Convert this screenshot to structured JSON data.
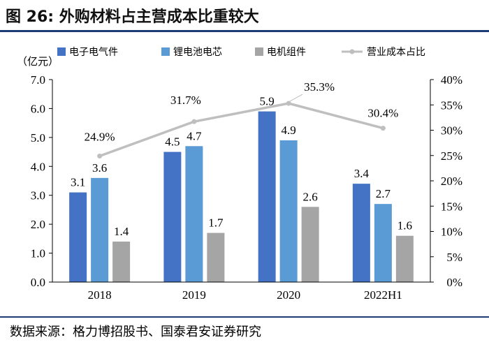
{
  "header": {
    "title": "图 26:  外购材料占主营成本比重较大"
  },
  "footer": {
    "source": "数据来源：格力博招股书、国泰君安证券研究"
  },
  "chart_data": {
    "type": "bar",
    "categories": [
      "2018",
      "2019",
      "2020",
      "2022H1"
    ],
    "unit_label": "（亿元）",
    "ylim": [
      0,
      7
    ],
    "y_ticks": [
      "0.0",
      "1.0",
      "2.0",
      "3.0",
      "4.0",
      "5.0",
      "6.0",
      "7.0"
    ],
    "y2lim": [
      0,
      40
    ],
    "y2_ticks": [
      "0%",
      "5%",
      "10%",
      "15%",
      "20%",
      "25%",
      "30%",
      "35%",
      "40%"
    ],
    "legend_position": "top",
    "series": [
      {
        "name": "电子电气件",
        "values": [
          3.1,
          4.5,
          5.9,
          3.4
        ],
        "labels": [
          "3.1",
          "4.5",
          "5.9",
          "3.4"
        ],
        "color": "#4472c4"
      },
      {
        "name": "锂电池电芯",
        "values": [
          3.6,
          4.7,
          4.9,
          2.7
        ],
        "labels": [
          "3.6",
          "4.7",
          "4.9",
          "2.7"
        ],
        "color": "#5b9bd5"
      },
      {
        "name": "电机组件",
        "values": [
          1.4,
          1.7,
          2.6,
          1.6
        ],
        "labels": [
          "1.4",
          "1.7",
          "2.6",
          "1.6"
        ],
        "color": "#a5a5a5"
      }
    ],
    "line_series": {
      "name": "营业成本占比",
      "type": "line",
      "axis": "right",
      "values": [
        24.9,
        31.7,
        35.3,
        30.4
      ],
      "labels": [
        "24.9%",
        "31.7%",
        "35.3%",
        "30.4%"
      ],
      "color": "#bfbfbf"
    }
  }
}
